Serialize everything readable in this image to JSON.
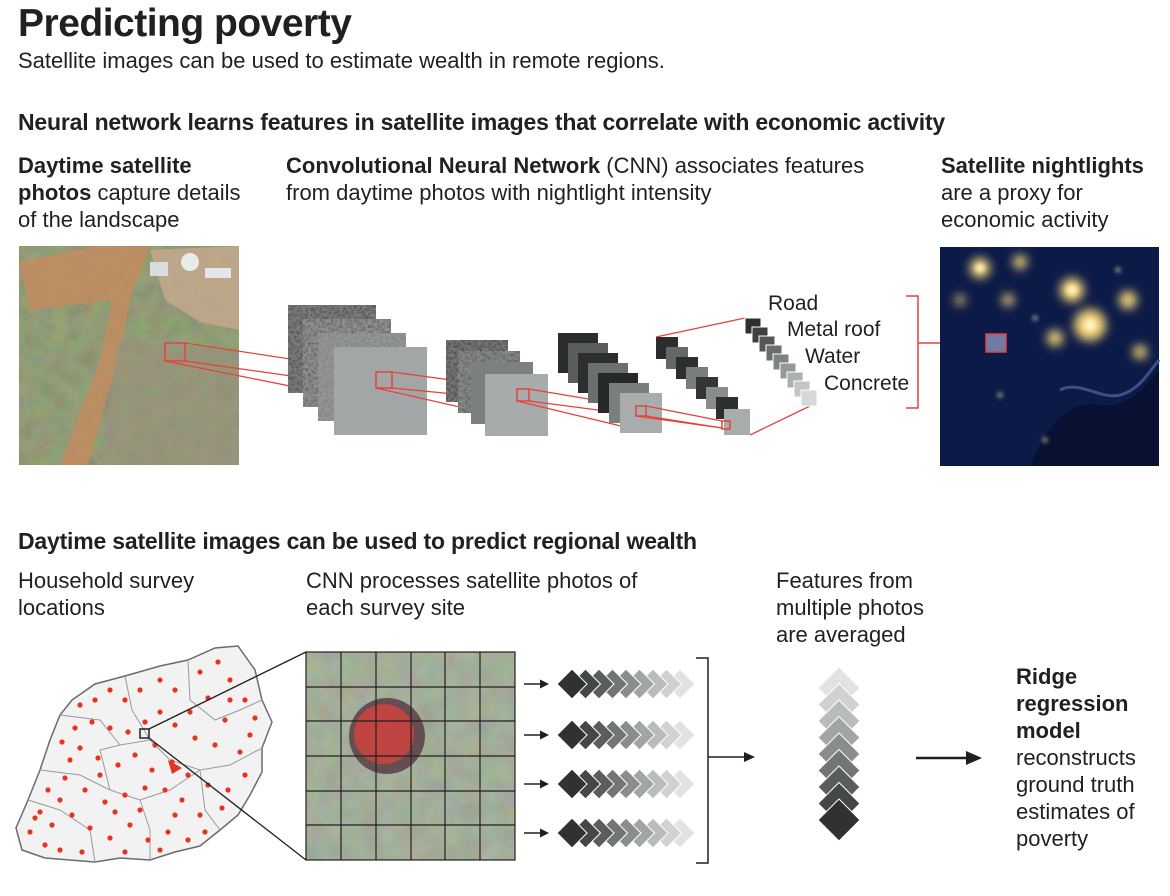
{
  "header": {
    "title": "Predicting poverty",
    "subtitle": "Satellite images can be used to estimate wealth in remote regions."
  },
  "section1": {
    "heading": "Neural network learns features in satellite images that correlate with economic activity",
    "daytime": {
      "bold": "Daytime satellite photos",
      "rest": " capture details of the landscape"
    },
    "cnn": {
      "bold": "Convolutional Neural Network",
      "rest": " (CNN) associates features from daytime photos with nightlight intensity"
    },
    "nightlights": {
      "bold": "Satellite nightlights",
      "rest": " are a proxy for economic activity"
    },
    "features": [
      "Road",
      "Metal roof",
      "Water",
      "Concrete"
    ]
  },
  "section2": {
    "heading": "Daytime satellite images can be used to predict regional wealth",
    "survey": "Household survey locations",
    "cnn_process": "CNN processes satellite photos of each survey site",
    "averaged": "Features from multiple photos are averaged",
    "ridge": {
      "bold": "Ridge regression model",
      "rest": " reconstructs ground truth estimates of poverty"
    }
  },
  "colors": {
    "accent_red": "#e8413a",
    "survey_dot": "#e5331f",
    "night_blue": "#0b1a4a",
    "day_green": "#6f7c52"
  }
}
